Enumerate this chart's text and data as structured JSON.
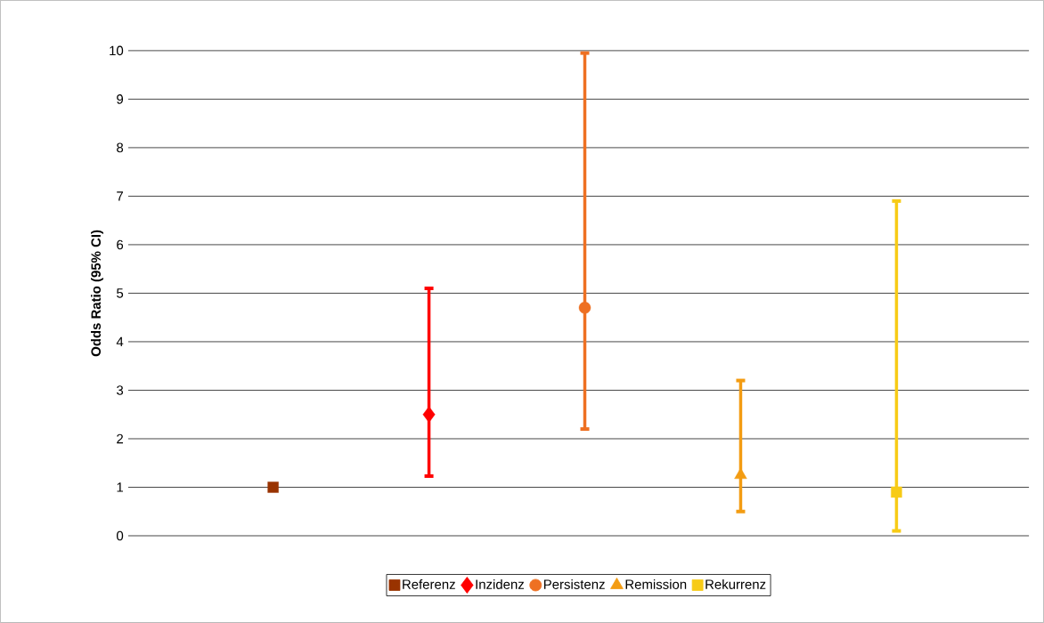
{
  "chart_data": {
    "type": "scatter",
    "ylabel": "Odds Ratio (95% CI)",
    "categories": [
      null,
      null,
      null,
      null,
      null
    ],
    "ylim": [
      0,
      10
    ],
    "yticks": [
      0,
      1,
      2,
      3,
      4,
      5,
      6,
      7,
      8,
      9,
      10
    ],
    "grid": "y",
    "legend": "bottom",
    "series": [
      {
        "name": "Referenz",
        "color": "#993300",
        "marker": "square",
        "values": [
          1.0,
          null,
          null,
          null,
          null
        ]
      },
      {
        "name": "Inzidenz",
        "color": "#ff0000",
        "marker": "diamond",
        "values": [
          null,
          2.5,
          null,
          null,
          null
        ],
        "errors": [
          null,
          [
            1.23,
            5.1
          ],
          null,
          null,
          null
        ]
      },
      {
        "name": "Persistenz",
        "color": "#ee7022",
        "marker": "circle",
        "values": [
          null,
          null,
          4.7,
          null,
          null
        ],
        "errors": [
          null,
          null,
          [
            2.2,
            9.95
          ],
          null,
          null
        ]
      },
      {
        "name": "Remission",
        "color": "#f39c12",
        "marker": "triangle",
        "values": [
          null,
          null,
          null,
          1.25,
          null
        ],
        "errors": [
          null,
          null,
          null,
          [
            0.5,
            3.2
          ],
          null
        ]
      },
      {
        "name": "Rekurrenz",
        "color": "#f7cb16",
        "marker": "square",
        "values": [
          null,
          null,
          null,
          null,
          0.9
        ],
        "errors": [
          null,
          null,
          null,
          null,
          [
            0.1,
            6.9
          ]
        ]
      }
    ]
  }
}
